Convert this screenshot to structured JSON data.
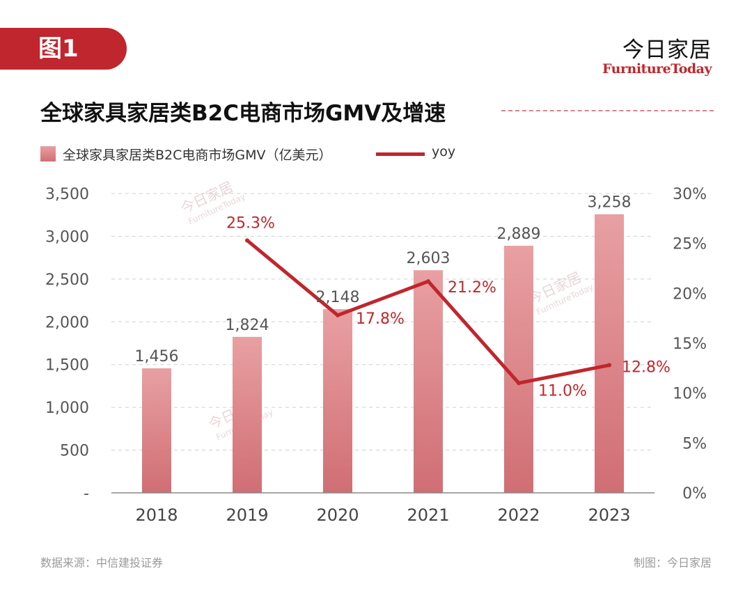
{
  "header": {
    "figure_tag": "图1",
    "brand_cn": "今日家居",
    "brand_en": "FurnitureToday"
  },
  "title": "全球家具家居类B2C电商市场GMV及增速",
  "legend": {
    "bar_label": "全球家具家居类B2C电商市场GMV（亿美元）",
    "line_label": "yoy"
  },
  "footer": {
    "source": "数据来源：中信建投证券",
    "credit": "制图：今日家居"
  },
  "colors": {
    "accent": "#c0262d",
    "bar_top": "#e8a0a2",
    "bar_bottom": "#d06e74"
  },
  "chart_data": {
    "type": "bar",
    "title": "全球家具家居类B2C电商市场GMV及增速",
    "categories": [
      "2018",
      "2019",
      "2020",
      "2021",
      "2022",
      "2023"
    ],
    "series": [
      {
        "name": "全球家具家居类B2C电商市场GMV（亿美元）",
        "type": "bar",
        "axis": "left",
        "values": [
          1456,
          1824,
          2148,
          2603,
          2889,
          3258
        ],
        "labels": [
          "1,456",
          "1,824",
          "2,148",
          "2,603",
          "2,889",
          "3,258"
        ]
      },
      {
        "name": "yoy",
        "type": "line",
        "axis": "right",
        "values": [
          null,
          25.3,
          17.8,
          21.2,
          11.0,
          12.8
        ],
        "labels": [
          "",
          "25.3%",
          "17.8%",
          "21.2%",
          "11.0%",
          "12.8%"
        ]
      }
    ],
    "y_left": {
      "range": [
        0,
        3500
      ],
      "ticks": [
        0,
        500,
        1000,
        1500,
        2000,
        2500,
        3000,
        3500
      ],
      "tick_labels": [
        "-",
        "500",
        "1,000",
        "1,500",
        "2,000",
        "2,500",
        "3,000",
        "3,500"
      ]
    },
    "y_right": {
      "range": [
        0,
        30
      ],
      "ticks": [
        0,
        5,
        10,
        15,
        20,
        25,
        30
      ],
      "tick_labels": [
        "0%",
        "5%",
        "10%",
        "15%",
        "20%",
        "25%",
        "30%"
      ]
    },
    "grid": "horizontal-dashed",
    "legend_position": "top-left",
    "watermark_text": [
      "今日家居",
      "FurnitureToday"
    ]
  }
}
